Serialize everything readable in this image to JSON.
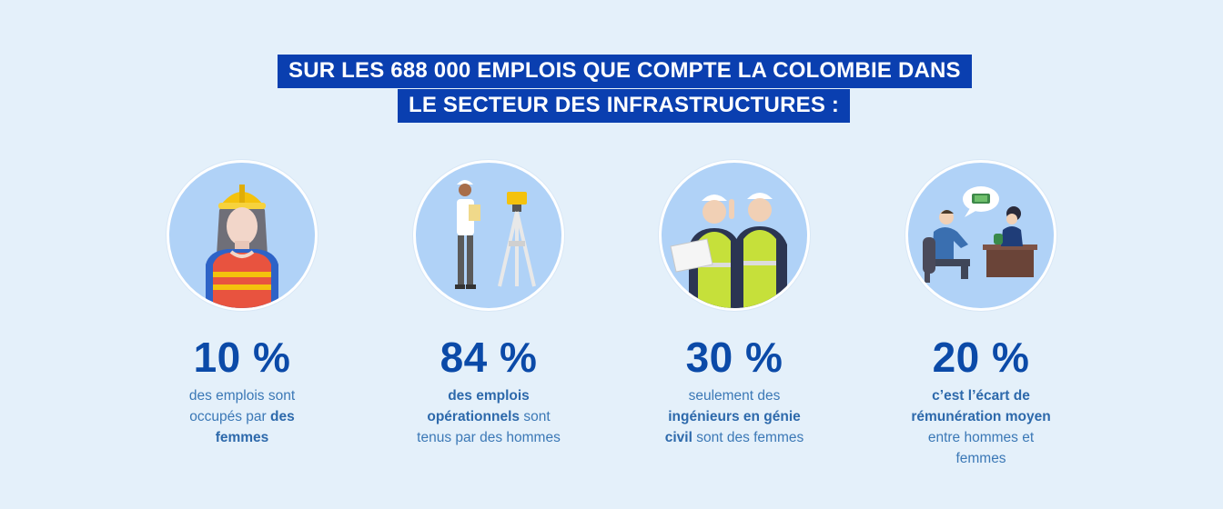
{
  "title": {
    "line1": "SUR LES 688 000 EMPLOIS QUE COMPTE LA COLOMBIE DANS",
    "line2": "LE SECTEUR DES INFRASTRUCTURES :"
  },
  "stats": [
    {
      "percent": "10 %",
      "icon": "female-worker-icon",
      "desc": {
        "t1": "des emplois sont",
        "t2": "occupés par ",
        "b1": "des",
        "b2": "femmes"
      }
    },
    {
      "percent": "84 %",
      "icon": "surveyor-icon",
      "desc": {
        "b1": "des emplois",
        "b2": "opérationnels",
        "t1": " sont",
        "t2": "tenus par des hommes"
      }
    },
    {
      "percent": "30 %",
      "icon": "engineers-icon",
      "desc": {
        "t1": "seulement des",
        "b1": "ingénieurs en génie",
        "b2": "civil",
        "t2": " sont des femmes"
      }
    },
    {
      "percent": "20 %",
      "icon": "salary-negotiation-icon",
      "desc": {
        "b1": "c’est l’écart de",
        "b2": "rémunération moyen",
        "t1": "entre hommes et",
        "t2": "femmes"
      }
    }
  ],
  "colors": {
    "background": "#e4f0fa",
    "title_bg": "#0a3fb0",
    "percent": "#0b4aa8",
    "text": "#3b78b6",
    "circle": "#b0d2f7"
  }
}
